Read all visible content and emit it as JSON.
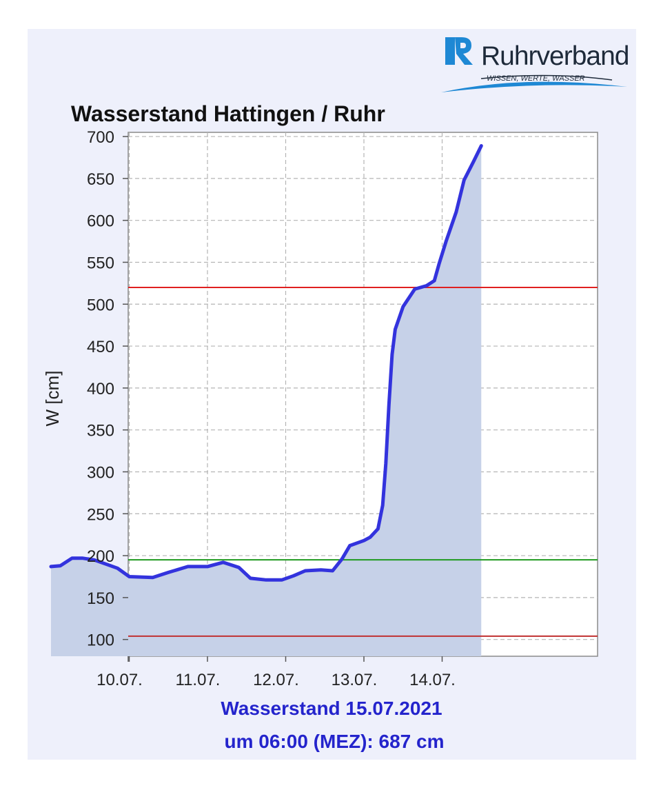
{
  "brand": {
    "name": "Ruhrverband",
    "tagline": "WISSEN, WERTE, WASSER",
    "colors": {
      "logo_blue": "#1e88d4",
      "logo_text": "#1e2a3a"
    }
  },
  "status": {
    "line1": "Wasserstand 15.07.2021",
    "line2": "um 06:00 (MEZ): 687 cm",
    "color": "#2424cc"
  },
  "chart_data": {
    "type": "area",
    "title": "Wasserstand Hattingen / Ruhr",
    "ylabel": "W [cm]",
    "xlabel": "",
    "x_unit": "days",
    "ylim": [
      80,
      705
    ],
    "yticks": [
      700,
      650,
      600,
      550,
      500,
      450,
      400,
      350,
      300,
      250,
      200,
      150,
      100
    ],
    "xlim": [
      0,
      6
    ],
    "xticks": [
      {
        "x": 1,
        "label": "10.07."
      },
      {
        "x": 2,
        "label": "11.07."
      },
      {
        "x": 3,
        "label": "12.07."
      },
      {
        "x": 4,
        "label": "13.07."
      },
      {
        "x": 5,
        "label": "14.07."
      }
    ],
    "grid": true,
    "threshold_lines": [
      {
        "value": 520,
        "color": "#e02020"
      },
      {
        "value": 195,
        "color": "#1f9a1f"
      },
      {
        "value": 104,
        "color": "#c03030"
      }
    ],
    "series": [
      {
        "color": "#3333dd",
        "fill": "#c6d1e8",
        "points": [
          [
            0.0,
            187
          ],
          [
            0.12,
            188
          ],
          [
            0.27,
            197
          ],
          [
            0.4,
            197
          ],
          [
            0.55,
            195
          ],
          [
            0.7,
            190
          ],
          [
            0.85,
            185
          ],
          [
            1.0,
            175
          ],
          [
            1.3,
            174
          ],
          [
            1.5,
            180
          ],
          [
            1.75,
            187
          ],
          [
            2.0,
            187
          ],
          [
            2.2,
            192
          ],
          [
            2.4,
            186
          ],
          [
            2.55,
            173
          ],
          [
            2.75,
            171
          ],
          [
            2.95,
            171
          ],
          [
            3.1,
            176
          ],
          [
            3.25,
            182
          ],
          [
            3.45,
            183
          ],
          [
            3.6,
            182
          ],
          [
            3.72,
            196
          ],
          [
            3.82,
            212
          ],
          [
            4.0,
            218
          ],
          [
            4.08,
            222
          ],
          [
            4.18,
            232
          ],
          [
            4.24,
            260
          ],
          [
            4.28,
            310
          ],
          [
            4.32,
            380
          ],
          [
            4.36,
            440
          ],
          [
            4.4,
            470
          ],
          [
            4.5,
            497
          ],
          [
            4.65,
            518
          ],
          [
            4.8,
            522
          ],
          [
            4.9,
            528
          ],
          [
            4.96,
            548
          ],
          [
            5.05,
            575
          ],
          [
            5.18,
            610
          ],
          [
            5.28,
            648
          ],
          [
            5.4,
            670
          ],
          [
            5.5,
            689
          ]
        ]
      }
    ]
  }
}
